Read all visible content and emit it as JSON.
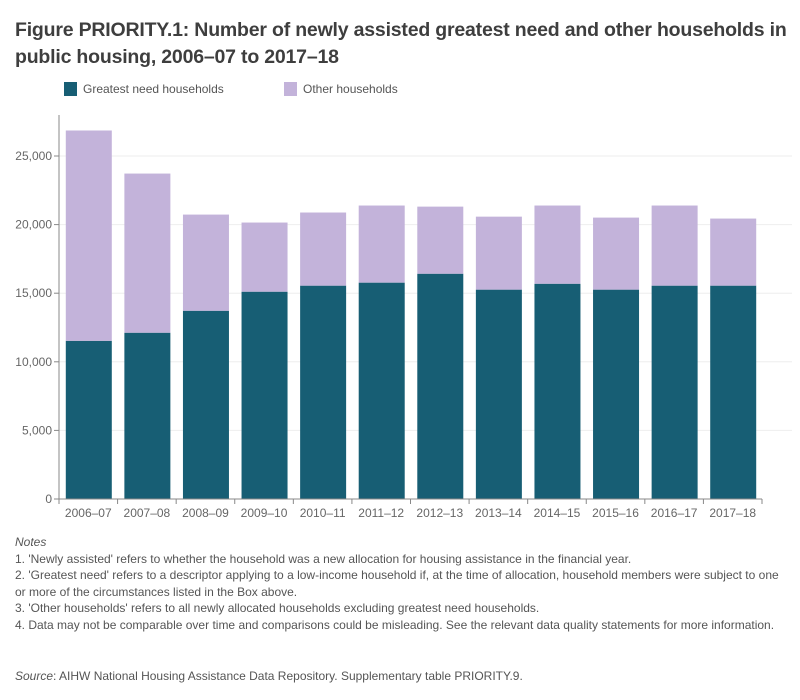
{
  "title": "Figure PRIORITY.1: Number of newly assisted greatest need and other households in public housing, 2006–07 to 2017–18",
  "colors": {
    "greatest_need": "#175e74",
    "other": "#c3b3da",
    "axis": "#888888",
    "gridline": "#eeeeee"
  },
  "legend": [
    {
      "label": "Greatest need households",
      "color": "#175e74"
    },
    {
      "label": "Other households",
      "color": "#c3b3da"
    }
  ],
  "chart_data": {
    "type": "bar",
    "stacked": true,
    "title": "Figure PRIORITY.1: Number of newly assisted greatest need and other households in public housing, 2006–07 to 2017–18",
    "xlabel": "",
    "ylabel": "",
    "ylim": [
      0,
      28000
    ],
    "yticks": [
      0,
      5000,
      10000,
      15000,
      20000,
      25000
    ],
    "ytick_labels": [
      "0",
      "5,000",
      "10,000",
      "15,000",
      "20,000",
      "25,000"
    ],
    "grid": true,
    "legend_position": "top-left",
    "categories": [
      "2006–07",
      "2007–08",
      "2008–09",
      "2009–10",
      "2010–11",
      "2011–12",
      "2012–13",
      "2013–14",
      "2014–15",
      "2015–16",
      "2016–17",
      "2017–18"
    ],
    "series": [
      {
        "name": "Greatest need households",
        "color": "#175e74",
        "values": [
          11530,
          12120,
          13720,
          15110,
          15550,
          15770,
          16420,
          15260,
          15690,
          15260,
          15550,
          15550
        ]
      },
      {
        "name": "Other households",
        "color": "#c3b3da",
        "values": [
          15330,
          11600,
          7010,
          5040,
          5330,
          5620,
          4890,
          5320,
          5700,
          5250,
          5840,
          4890
        ]
      }
    ]
  },
  "notes": {
    "heading": "Notes",
    "items": [
      "1. 'Newly assisted' refers to whether the household was a new allocation for housing assistance in the financial year.",
      "2. 'Greatest need' refers to a descriptor applying to a low-income household if, at the time of allocation, household members were subject to one or more of the circumstances listed in the Box above.",
      "3. 'Other households' refers to all newly allocated households excluding greatest need households.",
      "4. Data may not be comparable over time and comparisons could be misleading. See the relevant data quality statements for more information."
    ]
  },
  "source": {
    "label": "Source",
    "text": ": AIHW National Housing Assistance Data Repository. Supplementary table PRIORITY.9."
  }
}
